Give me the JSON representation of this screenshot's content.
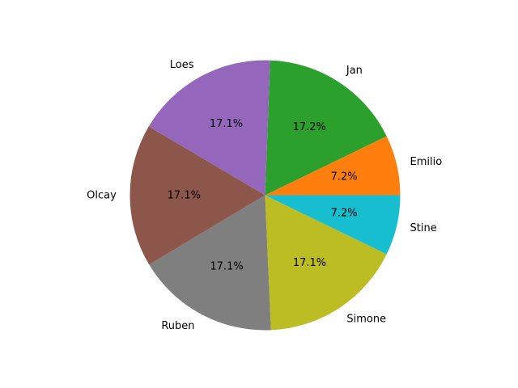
{
  "chart_data": {
    "type": "pie",
    "title": "",
    "start_angle_deg": 0,
    "direction": "counterclockwise",
    "slices": [
      {
        "label": "Emilio",
        "percent_label": "7.2%",
        "value": 7.2,
        "color": "#ff7f0e"
      },
      {
        "label": "Jan",
        "percent_label": "17.2%",
        "value": 17.2,
        "color": "#2ca02c"
      },
      {
        "label": "Loes",
        "percent_label": "17.1%",
        "value": 17.1,
        "color": "#9467bd"
      },
      {
        "label": "Olcay",
        "percent_label": "17.1%",
        "value": 17.1,
        "color": "#8c564b"
      },
      {
        "label": "Ruben",
        "percent_label": "17.1%",
        "value": 17.1,
        "color": "#7f7f7f"
      },
      {
        "label": "Simone",
        "percent_label": "17.1%",
        "value": 17.1,
        "color": "#bcbd22"
      },
      {
        "label": "Stine",
        "percent_label": "7.2%",
        "value": 7.2,
        "color": "#17becf"
      }
    ]
  }
}
